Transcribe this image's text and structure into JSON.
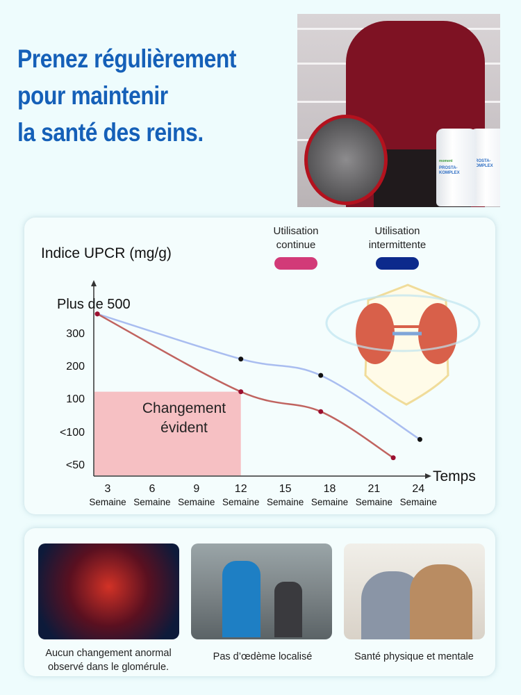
{
  "headline": [
    "Prenez régulièrement",
    "pour maintenir",
    "la santé des reins."
  ],
  "product": {
    "brand": "moment",
    "name": "PROSTA-KOMPLEX"
  },
  "chart_data": {
    "type": "line",
    "ylabel": "Indice UPCR (mg/g)",
    "xlabel": "Temps",
    "x_ticks": [
      {
        "value": 3,
        "unit": "Semaine"
      },
      {
        "value": 6,
        "unit": "Semaine"
      },
      {
        "value": 9,
        "unit": "Semaine"
      },
      {
        "value": 12,
        "unit": "Semaine"
      },
      {
        "value": 15,
        "unit": "Semaine"
      },
      {
        "value": 18,
        "unit": "Semaine"
      },
      {
        "value": 21,
        "unit": "Semaine"
      },
      {
        "value": 24,
        "unit": "Semaine"
      }
    ],
    "y_ticks": [
      {
        "label": "Plus de 500",
        "value": 500
      },
      {
        "label": "300",
        "value": 300
      },
      {
        "label": "200",
        "value": 200
      },
      {
        "label": "100",
        "value": 100
      },
      {
        "label": "<100",
        "value": 75
      },
      {
        "label": "<50",
        "value": 50
      }
    ],
    "series": [
      {
        "name": "Utilisation continue",
        "color": "#d23a78",
        "line_color": "#c0635f",
        "x": [
          2.3,
          12,
          17.4,
          22.3
        ],
        "y": [
          430,
          120,
          90,
          55
        ]
      },
      {
        "name": "Utilisation intermittente",
        "color": "#0c2a8c",
        "line_color": "#a9bdf0",
        "x": [
          2.3,
          12,
          17.4,
          24.1
        ],
        "y": [
          430,
          220,
          170,
          69
        ]
      }
    ],
    "highlight": {
      "label_lines": [
        "Changement",
        "évident"
      ],
      "x_to": 12,
      "y_to": 120,
      "color": "#f6b9bd"
    },
    "grid": false,
    "legend_position": "top-right"
  },
  "benefits": [
    {
      "caption_lines": [
        "Aucun changement anormal",
        "observé dans le glomérule."
      ]
    },
    {
      "caption_lines": [
        "Pas d’œdème localisé"
      ]
    },
    {
      "caption_lines": [
        "Santé physique et mentale"
      ]
    }
  ]
}
